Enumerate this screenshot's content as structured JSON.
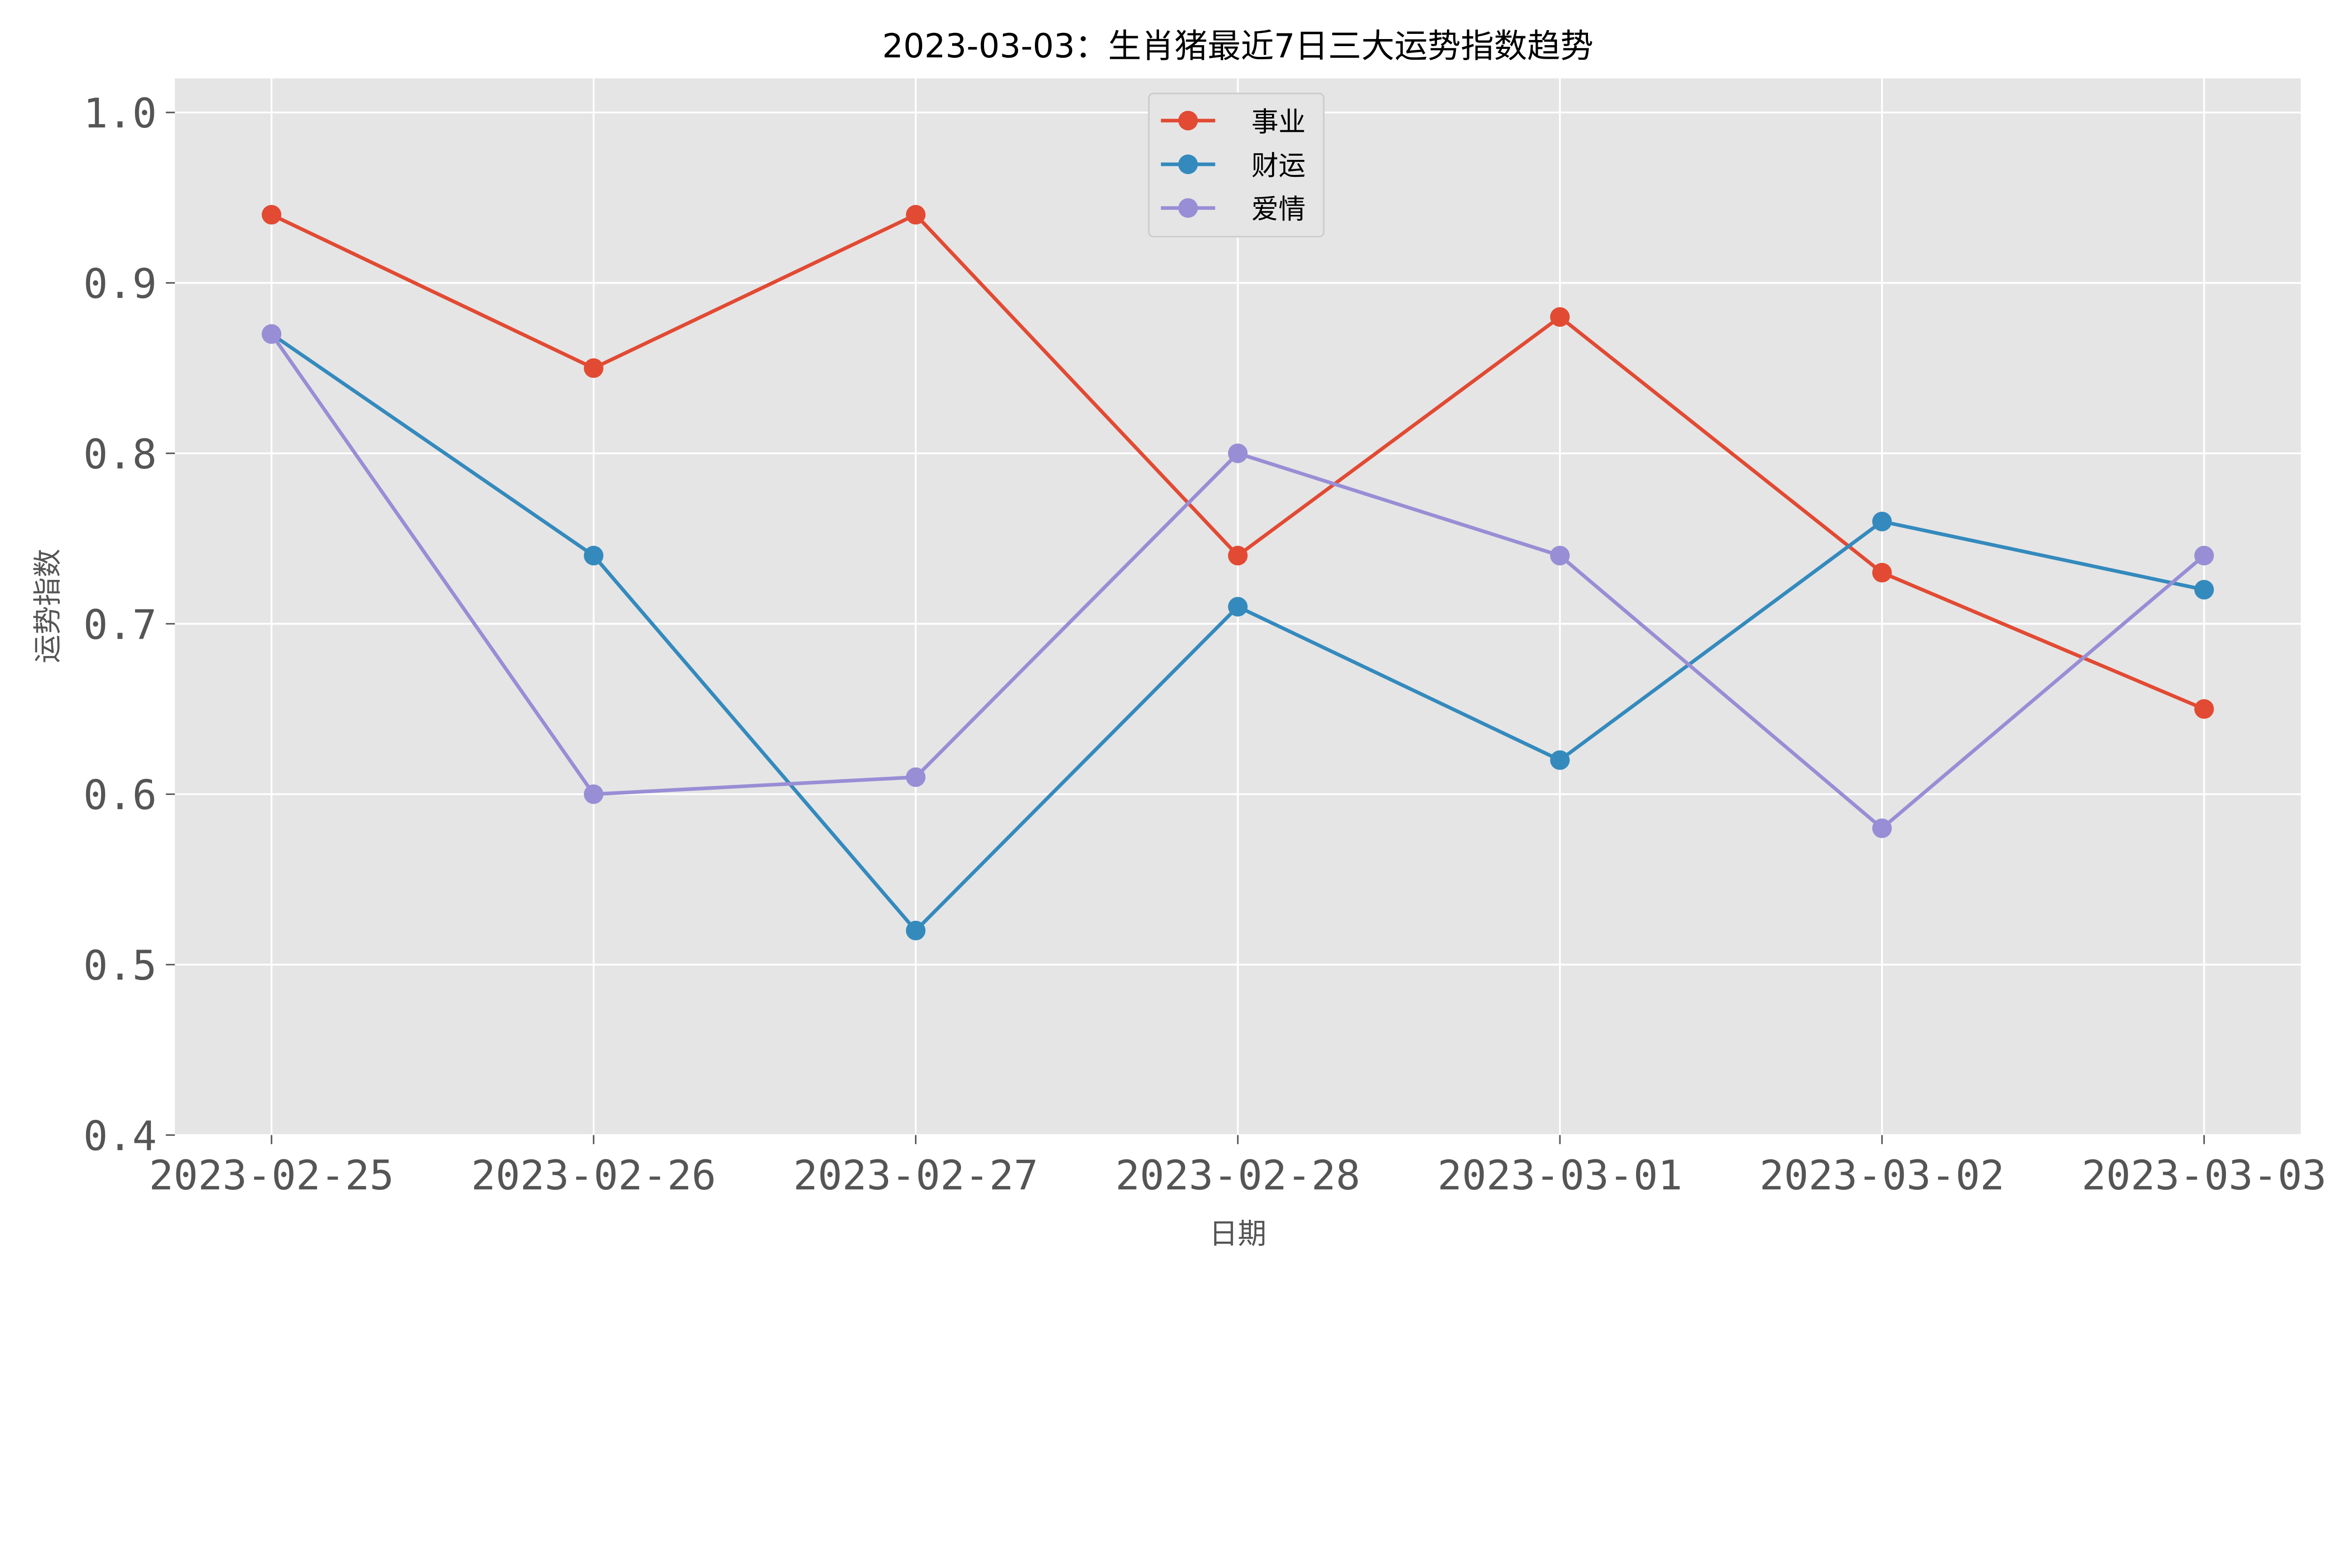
{
  "chart_data": {
    "type": "line",
    "title": "2023-03-03：生肖猪最近7日三大运势指数趋势",
    "xlabel": "日期",
    "ylabel": "运势指数",
    "categories": [
      "2023-02-25",
      "2023-02-26",
      "2023-02-27",
      "2023-02-28",
      "2023-03-01",
      "2023-03-02",
      "2023-03-03"
    ],
    "ylim": [
      0.4,
      1.02
    ],
    "yticks": [
      "0.4",
      "0.5",
      "0.6",
      "0.7",
      "0.8",
      "0.9",
      "1.0"
    ],
    "grid": true,
    "legend_position": "top-center",
    "background": "#E5E5E5",
    "series": [
      {
        "name": "事业",
        "color": "#E24A33",
        "values": [
          0.94,
          0.85,
          0.94,
          0.74,
          0.88,
          0.73,
          0.65
        ]
      },
      {
        "name": "财运",
        "color": "#348ABD",
        "values": [
          0.87,
          0.74,
          0.52,
          0.71,
          0.62,
          0.76,
          0.72
        ]
      },
      {
        "name": "爱情",
        "color": "#988ED5",
        "values": [
          0.87,
          0.6,
          0.61,
          0.8,
          0.74,
          0.58,
          0.74
        ]
      }
    ]
  }
}
